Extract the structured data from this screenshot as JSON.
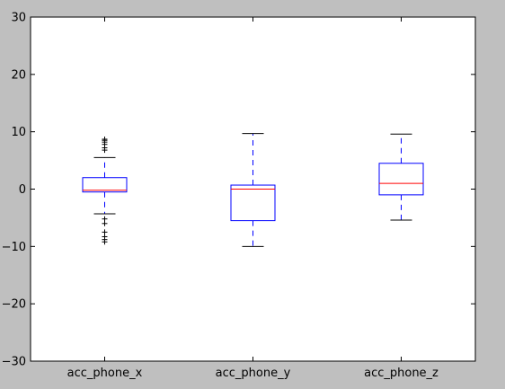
{
  "chart_data": {
    "type": "box",
    "title": "",
    "xlabel": "",
    "ylabel": "",
    "ylim": [
      -30,
      30
    ],
    "yticks": [
      -30,
      -20,
      -10,
      0,
      10,
      20,
      30
    ],
    "ytick_labels": [
      "−30",
      "−20",
      "−10",
      "0",
      "10",
      "20",
      "30"
    ],
    "grid": false,
    "categories": [
      "acc_phone_x",
      "acc_phone_y",
      "acc_phone_z"
    ],
    "boxes": [
      {
        "name": "acc_phone_x",
        "whisker_low": -4.3,
        "q1": -0.5,
        "median": -0.2,
        "q3": 2.0,
        "whisker_high": 5.5,
        "outliers": [
          -9.2,
          -8.8,
          -8.3,
          -7.5,
          -6.0,
          -5.2,
          6.8,
          7.2,
          7.8,
          8.2,
          8.5,
          8.7
        ]
      },
      {
        "name": "acc_phone_y",
        "whisker_low": -10.0,
        "q1": -5.5,
        "median": 0.0,
        "q3": 0.7,
        "whisker_high": 9.7,
        "outliers": []
      },
      {
        "name": "acc_phone_z",
        "whisker_low": -5.4,
        "q1": -1.0,
        "median": 1.0,
        "q3": 4.5,
        "whisker_high": 9.6,
        "outliers": []
      }
    ],
    "colors": {
      "box": "#0000ff",
      "median": "#ff0000",
      "whisker_cap": "#000000",
      "outlier": "#000000",
      "axes_bg": "#ffffff",
      "figure_bg": "#bfbfbf"
    }
  }
}
